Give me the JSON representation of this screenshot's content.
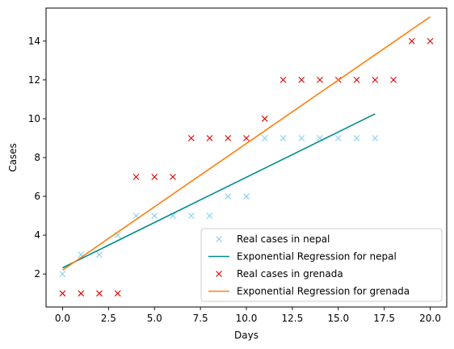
{
  "chart_data": {
    "type": "scatter",
    "xlabel": "Days",
    "ylabel": "Cases",
    "xlim": [
      -0.9,
      20.9
    ],
    "ylim": [
      0.3,
      15.7
    ],
    "xticks": [
      0,
      2.5,
      5,
      7.5,
      10,
      12.5,
      15,
      17.5,
      20
    ],
    "xtick_labels": [
      "0.0",
      "2.5",
      "5.0",
      "7.5",
      "10.0",
      "12.5",
      "15.0",
      "17.5",
      "20.0"
    ],
    "yticks": [
      2,
      4,
      6,
      8,
      10,
      12,
      14
    ],
    "ytick_labels": [
      "2",
      "4",
      "6",
      "8",
      "10",
      "12",
      "14"
    ],
    "grid": false,
    "legend_position": "bottom-right",
    "series": [
      {
        "name": "Real cases in nepal",
        "kind": "marker",
        "marker": "x",
        "color": "#87CEEB",
        "x": [
          0,
          1,
          2,
          3,
          4,
          5,
          6,
          7,
          8,
          9,
          10,
          11,
          12,
          13,
          14,
          15,
          16,
          17
        ],
        "y": [
          2,
          3,
          3,
          4,
          5,
          5,
          5,
          5,
          5,
          6,
          6,
          9,
          9,
          9,
          9,
          9,
          9,
          9
        ]
      },
      {
        "name": "Exponential Regression for nepal",
        "kind": "line",
        "color": "#008B8B",
        "x": [
          0,
          17
        ],
        "y": [
          2.32,
          10.25
        ]
      },
      {
        "name": "Real cases in grenada",
        "kind": "marker",
        "marker": "x",
        "color": "#E00000",
        "x": [
          0,
          1,
          2,
          3,
          4,
          5,
          6,
          7,
          8,
          9,
          10,
          11,
          12,
          13,
          14,
          15,
          16,
          17,
          18,
          19,
          20
        ],
        "y": [
          1,
          1,
          1,
          1,
          7,
          7,
          7,
          9,
          9,
          9,
          9,
          10,
          12,
          12,
          12,
          12,
          12,
          12,
          12,
          14,
          14
        ]
      },
      {
        "name": "Exponential Regression for grenada",
        "kind": "line",
        "color": "#FF7F0E",
        "x": [
          0,
          20
        ],
        "y": [
          2.2,
          15.25
        ]
      }
    ]
  }
}
